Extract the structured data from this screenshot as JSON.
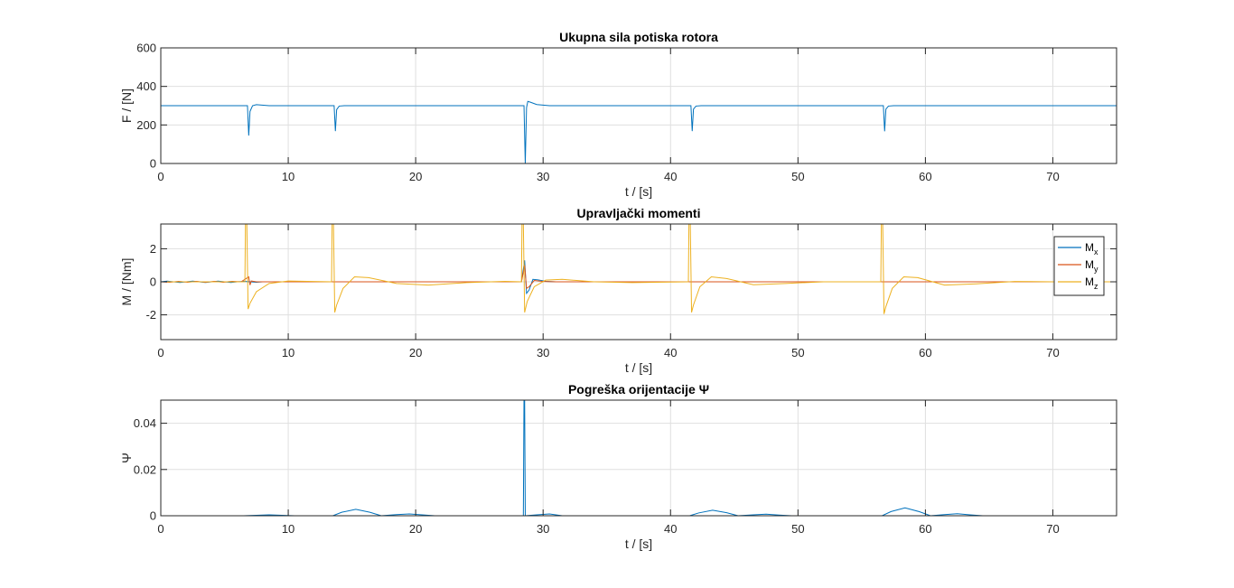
{
  "chart_data": [
    {
      "type": "line",
      "title": "Ukupna sila potiska rotora",
      "xlabel": "t / [s]",
      "ylabel": "F / [N]",
      "xlim": [
        0,
        75
      ],
      "ylim": [
        0,
        600
      ],
      "xticks": [
        0,
        10,
        20,
        30,
        40,
        50,
        60,
        70
      ],
      "yticks": [
        0,
        200,
        400,
        600
      ],
      "grid": true,
      "series": [
        {
          "color": "#0072BD",
          "x": [
            0,
            6.8,
            6.9,
            7.0,
            7.2,
            7.5,
            8.5,
            13.6,
            13.7,
            13.8,
            14.0,
            14.4,
            28.5,
            28.6,
            28.7,
            28.8,
            29.0,
            29.5,
            30.5,
            41.6,
            41.7,
            41.8,
            42.0,
            42.4,
            56.7,
            56.8,
            56.9,
            57.1,
            57.5,
            75
          ],
          "y": [
            300,
            300,
            145,
            270,
            300,
            305,
            300,
            300,
            168,
            280,
            298,
            300,
            300,
            0,
            290,
            322,
            318,
            306,
            300,
            300,
            168,
            282,
            298,
            300,
            300,
            167,
            282,
            298,
            300,
            300
          ]
        }
      ]
    },
    {
      "type": "line",
      "title": "Upravljački momenti",
      "xlabel": "t / [s]",
      "ylabel": "M / [Nm]",
      "xlim": [
        0,
        75
      ],
      "ylim": [
        -3.5,
        3.5
      ],
      "xticks": [
        0,
        10,
        20,
        30,
        40,
        50,
        60,
        70
      ],
      "yticks": [
        -2,
        0,
        2
      ],
      "grid": true,
      "legend": {
        "position": "right",
        "entries": [
          {
            "base": "M",
            "sub": "x",
            "color": "#0072BD"
          },
          {
            "base": "M",
            "sub": "y",
            "color": "#D95319"
          },
          {
            "base": "M",
            "sub": "z",
            "color": "#EDB120"
          }
        ]
      },
      "series": [
        {
          "color": "#0072BD",
          "x": [
            0,
            0.5,
            1,
            1.5,
            2,
            2.5,
            3,
            3.5,
            4,
            4.5,
            5,
            5.5,
            6,
            6.5,
            7,
            7.5,
            8,
            9,
            28.3,
            28.55,
            28.7,
            28.9,
            29.2,
            29.6,
            30.2,
            31,
            75
          ],
          "y": [
            0,
            0.04,
            0,
            -0.04,
            0,
            0.04,
            0,
            -0.04,
            0,
            0.04,
            0,
            -0.04,
            0,
            0.03,
            0,
            -0.03,
            0,
            0,
            0,
            1.3,
            -0.7,
            -0.5,
            0.15,
            0.12,
            0.03,
            0,
            0
          ]
        },
        {
          "color": "#D95319",
          "x": [
            0,
            0.7,
            1.4,
            2.1,
            2.8,
            3.5,
            4.2,
            4.9,
            5.6,
            6.3,
            6.9,
            7.0,
            7.1,
            7.5,
            9,
            28.3,
            28.55,
            28.7,
            28.9,
            29.3,
            30,
            31,
            75
          ],
          "y": [
            0,
            -0.03,
            0.03,
            -0.03,
            0.03,
            -0.03,
            0.03,
            -0.03,
            0.03,
            0,
            0.3,
            -0.2,
            0.05,
            0,
            0,
            0,
            1.0,
            -0.4,
            -0.3,
            0.08,
            0.02,
            0,
            0
          ]
        },
        {
          "color": "#EDB120",
          "x": [
            0,
            6.6,
            6.65,
            6.75,
            6.85,
            7.0,
            7.5,
            8.5,
            10,
            11.5,
            13.4,
            13.45,
            13.55,
            13.65,
            13.8,
            14.3,
            15.2,
            16.3,
            18.5,
            21,
            24,
            27,
            28.3,
            28.35,
            28.45,
            28.55,
            28.75,
            29.3,
            30.2,
            31.5,
            34,
            37,
            41.4,
            41.45,
            41.55,
            41.65,
            41.8,
            42.3,
            43.2,
            44.4,
            46.5,
            49,
            52,
            56.5,
            56.55,
            56.65,
            56.75,
            56.9,
            57.4,
            58.3,
            59.4,
            61.5,
            64,
            67,
            70,
            75
          ],
          "y": [
            0,
            0,
            4,
            3.5,
            -1.65,
            -1.3,
            -0.6,
            -0.1,
            0.05,
            0.03,
            0,
            4,
            3.5,
            -1.85,
            -1.4,
            -0.4,
            0.3,
            0.25,
            -0.1,
            -0.2,
            -0.05,
            0.03,
            0,
            4,
            3.5,
            -1.85,
            -1.2,
            -0.3,
            0.1,
            0.15,
            0,
            -0.05,
            0,
            4,
            3.5,
            -1.85,
            -1.4,
            -0.3,
            0.3,
            0.2,
            -0.18,
            -0.1,
            0,
            0,
            4,
            3.5,
            -1.95,
            -1.5,
            -0.4,
            0.3,
            0.25,
            -0.2,
            -0.12,
            0.02,
            0,
            0
          ]
        }
      ]
    },
    {
      "type": "line",
      "title": "Pogreška orijentacije Ψ",
      "xlabel": "t / [s]",
      "ylabel": "Ψ",
      "xlim": [
        0,
        75
      ],
      "ylim": [
        0,
        0.05
      ],
      "xticks": [
        0,
        10,
        20,
        30,
        40,
        50,
        60,
        70
      ],
      "yticks": [
        0,
        0.02,
        0.04
      ],
      "grid": true,
      "series": [
        {
          "color": "#0072BD",
          "x": [
            0,
            6.5,
            7.5,
            8.5,
            9.5,
            10.5,
            13.5,
            14.2,
            15.3,
            16.4,
            17.3,
            18.5,
            19.5,
            20.5,
            21.5,
            28.45,
            28.5,
            28.55,
            28.6,
            29.5,
            30.5,
            31.5,
            41.5,
            42.2,
            43.3,
            44.4,
            45.3,
            46.5,
            47.5,
            48.5,
            49.5,
            56.6,
            57.3,
            58.4,
            59.5,
            60.4,
            61.5,
            62.5,
            63.5,
            64.5,
            75
          ],
          "y": [
            0,
            0,
            0.0002,
            0.0004,
            0.0002,
            0,
            0,
            0.0015,
            0.0028,
            0.0015,
            0,
            0.0005,
            0.0008,
            0.0004,
            0,
            0,
            0.05,
            0.05,
            0,
            0.0004,
            0.0008,
            0,
            0,
            0.0012,
            0.0024,
            0.0013,
            0,
            0.0004,
            0.0007,
            0.0003,
            0,
            0,
            0.0018,
            0.0034,
            0.0018,
            0,
            0.0005,
            0.0009,
            0.0004,
            0,
            0
          ]
        }
      ]
    }
  ]
}
